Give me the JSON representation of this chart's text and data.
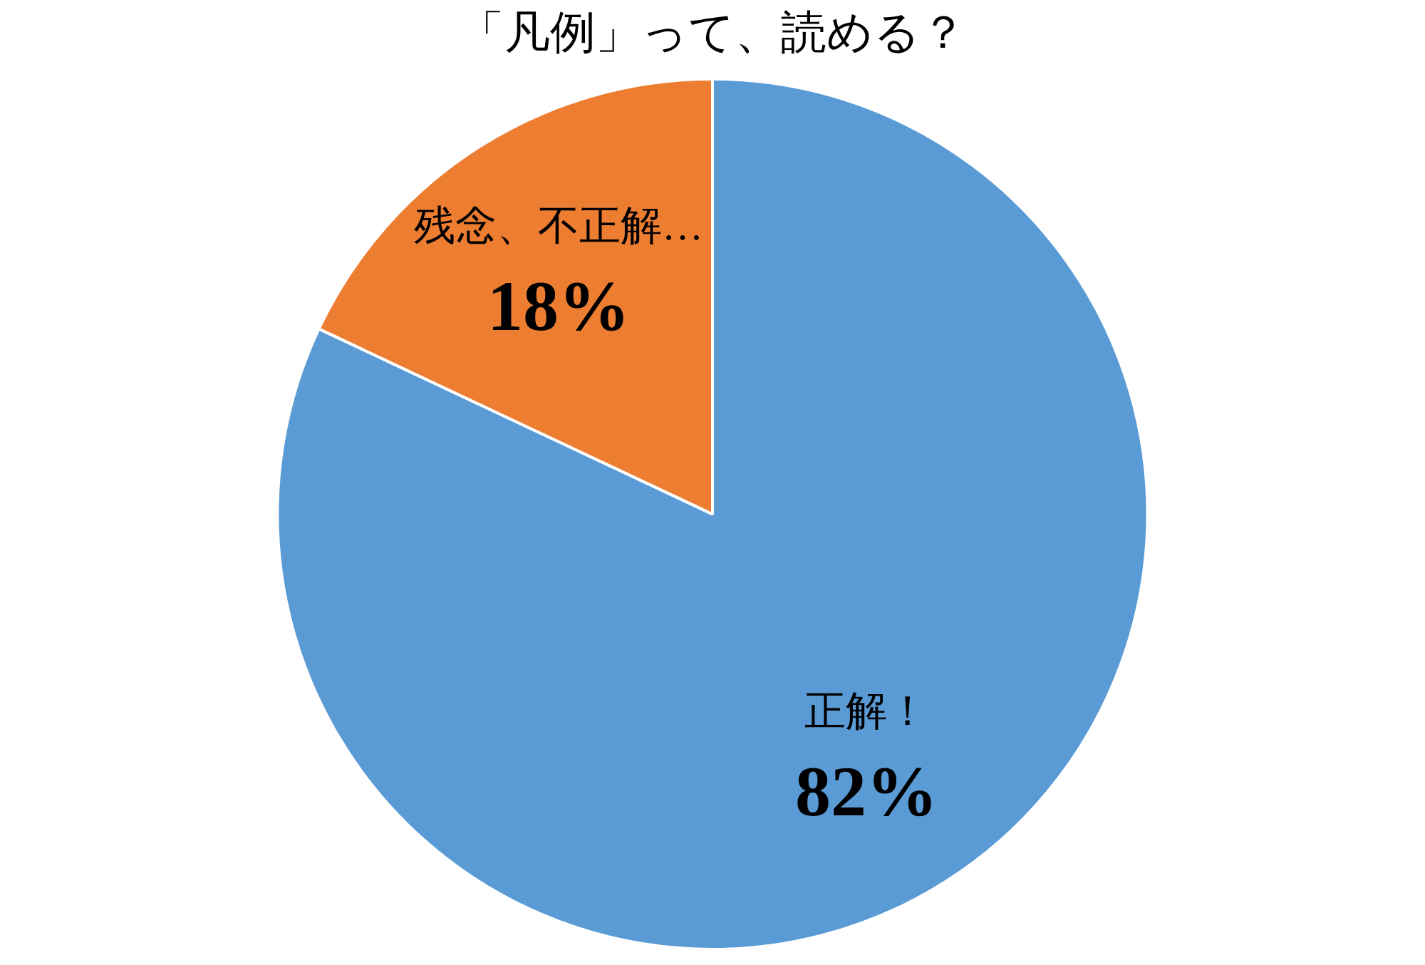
{
  "chart_data": {
    "type": "pie",
    "title": "「凡例」って、読める？",
    "categories": [
      "正解！",
      "残念、不正解…"
    ],
    "values": [
      82,
      18
    ],
    "value_labels": [
      "82%",
      "18%"
    ],
    "colors": [
      "#5b9bd5",
      "#ed7d31"
    ],
    "legend": false
  }
}
